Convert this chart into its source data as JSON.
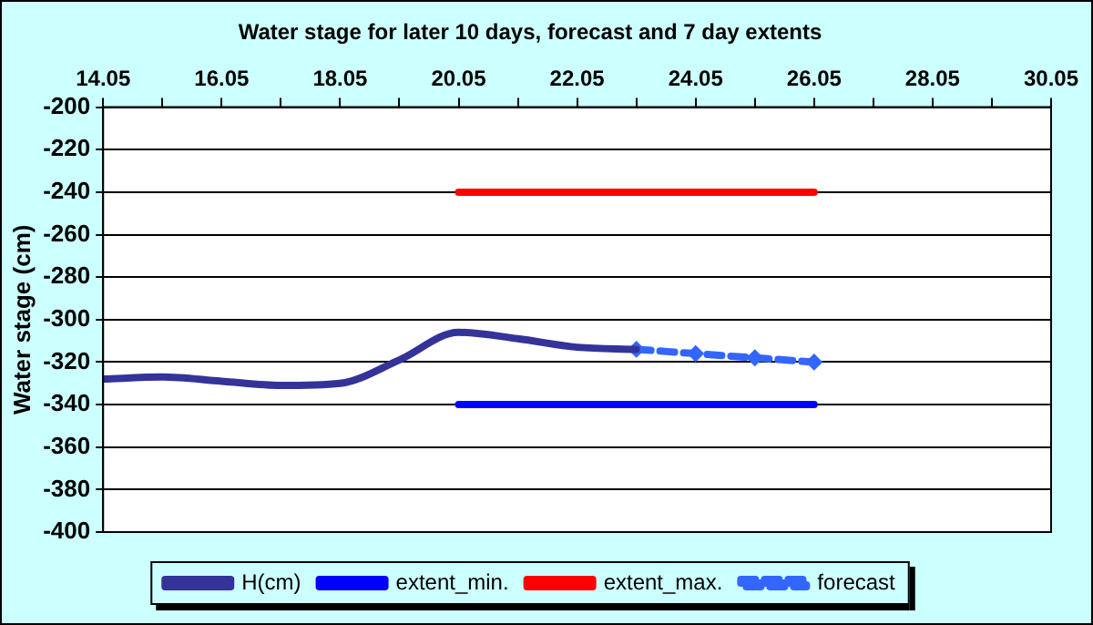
{
  "chart_data": {
    "type": "line",
    "title": "Water stage for later 10 days, forecast and 7 day extents",
    "ylabel": "Water stage (cm)",
    "xlim": [
      "--05-14",
      "--05-30"
    ],
    "ylim": [
      -400,
      -200
    ],
    "xticks": [
      {
        "value": "--05-14",
        "label": "14.05"
      },
      {
        "value": "--05-15",
        "label": null
      },
      {
        "value": "--05-16",
        "label": "16.05"
      },
      {
        "value": "--05-17",
        "label": null
      },
      {
        "value": "--05-18",
        "label": "18.05"
      },
      {
        "value": "--05-19",
        "label": null
      },
      {
        "value": "--05-20",
        "label": "20.05"
      },
      {
        "value": "--05-21",
        "label": null
      },
      {
        "value": "--05-22",
        "label": "22.05"
      },
      {
        "value": "--05-23",
        "label": null
      },
      {
        "value": "--05-24",
        "label": "24.05"
      },
      {
        "value": "--05-25",
        "label": null
      },
      {
        "value": "--05-26",
        "label": "26.05"
      },
      {
        "value": "--05-27",
        "label": null
      },
      {
        "value": "--05-28",
        "label": "28.05"
      },
      {
        "value": "--05-29",
        "label": null
      },
      {
        "value": "--05-30",
        "label": "30.05"
      }
    ],
    "yticks": [
      -400,
      -380,
      -360,
      -340,
      -320,
      -300,
      -280,
      -260,
      -240,
      -220,
      -200
    ],
    "grid": "y",
    "legend": "bottom",
    "series": [
      {
        "name": "H(cm)",
        "color": "#333399",
        "marker": "none",
        "line_style": "solid",
        "x": [
          "--05-14",
          "--05-15",
          "--05-16",
          "--05-17",
          "--05-18",
          "--05-19",
          "--05-20",
          "--05-21",
          "--05-22",
          "--05-23"
        ],
        "values": [
          -328,
          -327,
          -329,
          -331,
          -330,
          -319,
          -306,
          -309,
          -313,
          -314
        ]
      },
      {
        "name": "extent_min.",
        "color": "#0000ff",
        "marker": "none",
        "line_style": "solid",
        "x": [
          "--05-20",
          "--05-26"
        ],
        "values": [
          -340,
          -340
        ]
      },
      {
        "name": "extent_max.",
        "color": "#ff0000",
        "marker": "none",
        "line_style": "solid",
        "x": [
          "--05-20",
          "--05-26"
        ],
        "values": [
          -240,
          -240
        ]
      },
      {
        "name": "forecast",
        "color": "#3366ff",
        "marker": "diamond",
        "line_style": "dashed",
        "x": [
          "--05-23",
          "--05-24",
          "--05-25",
          "--05-26"
        ],
        "values": [
          -314,
          -316,
          -318,
          -320
        ]
      }
    ]
  }
}
